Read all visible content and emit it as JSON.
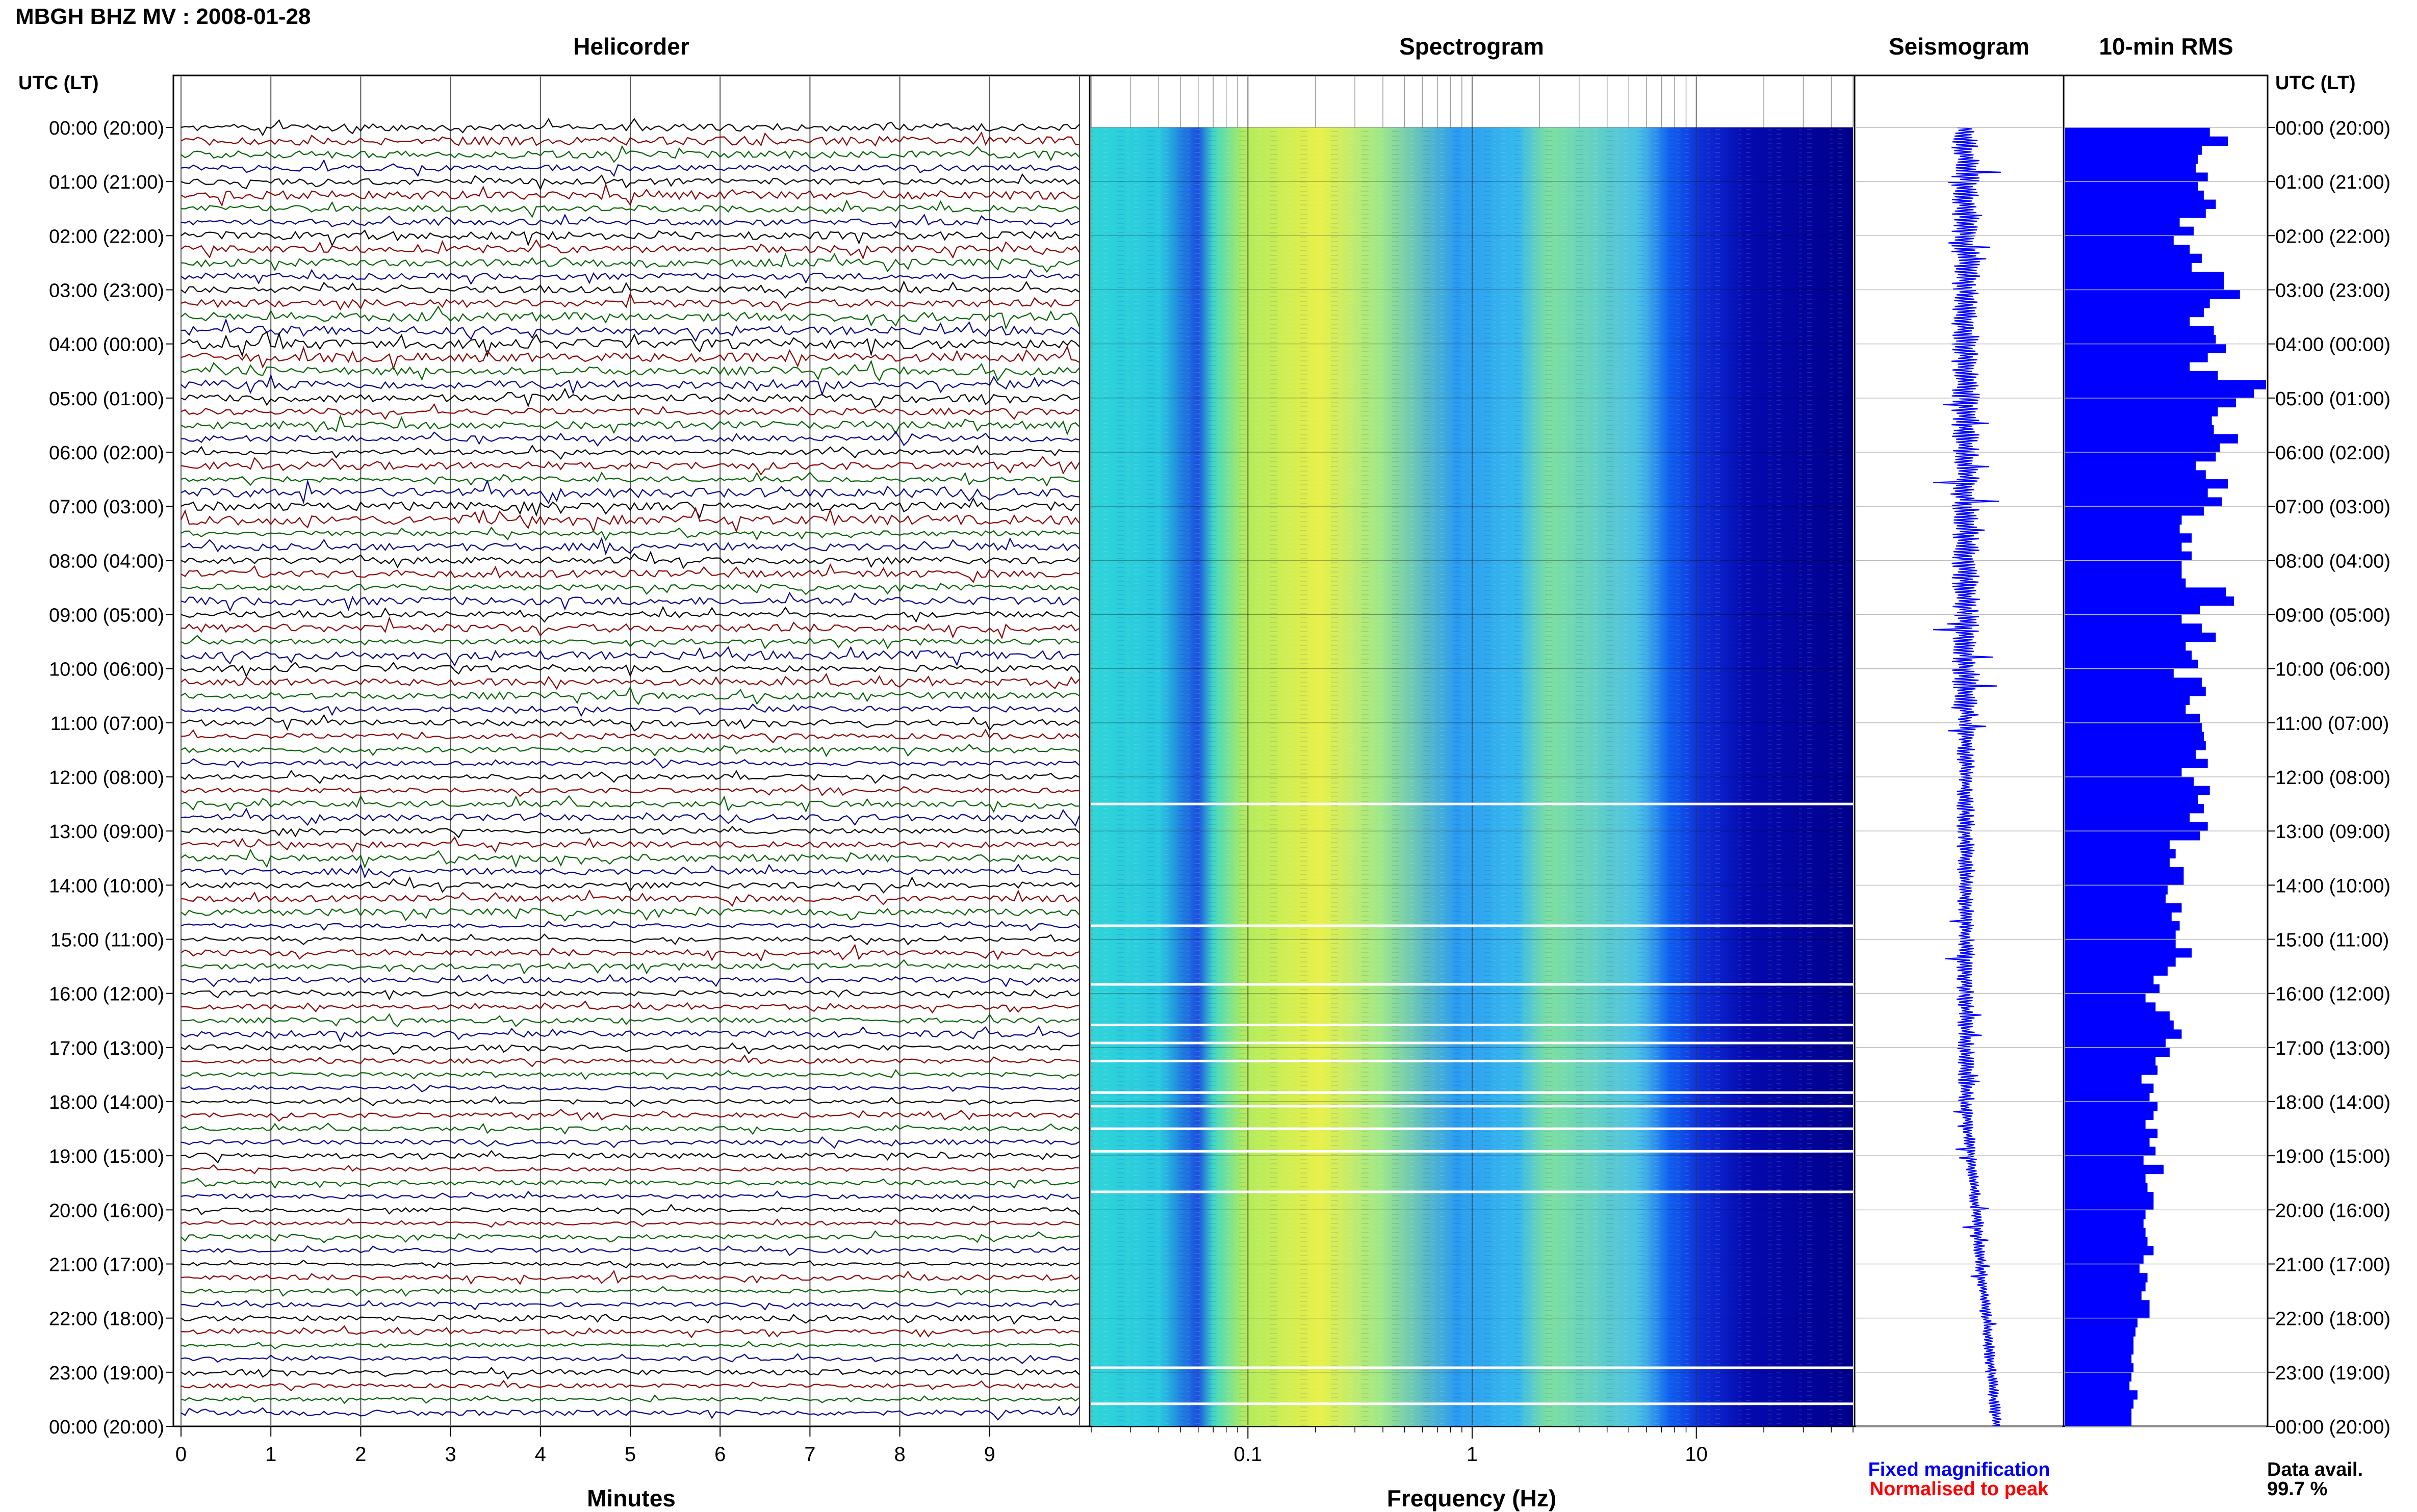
{
  "header": {
    "title": "MBGH BHZ MV : 2008-01-28",
    "panels": [
      "Helicorder",
      "Spectrogram",
      "Seismogram",
      "10-min RMS"
    ]
  },
  "axes": {
    "utc_lt_label": "UTC (LT)",
    "time_labels": [
      "00:00 (20:00)",
      "01:00 (21:00)",
      "02:00 (22:00)",
      "03:00 (23:00)",
      "04:00 (00:00)",
      "05:00 (01:00)",
      "06:00 (02:00)",
      "07:00 (03:00)",
      "08:00 (04:00)",
      "09:00 (05:00)",
      "10:00 (06:00)",
      "11:00 (07:00)",
      "12:00 (08:00)",
      "13:00 (09:00)",
      "14:00 (10:00)",
      "15:00 (11:00)",
      "16:00 (12:00)",
      "17:00 (13:00)",
      "18:00 (14:00)",
      "19:00 (15:00)",
      "20:00 (16:00)",
      "21:00 (17:00)",
      "22:00 (18:00)",
      "23:00 (19:00)",
      "00:00 (20:00)"
    ],
    "minutes_label": "Minutes",
    "minutes_ticks": [
      "0",
      "1",
      "2",
      "3",
      "4",
      "5",
      "6",
      "7",
      "8",
      "9"
    ],
    "frequency_label": "Frequency (Hz)",
    "frequency_ticks": [
      "0.1",
      "1",
      "10"
    ]
  },
  "legend": {
    "fixed": "Fixed magnification",
    "normalised": "Normalised to peak",
    "fixed_color": "#0000ff",
    "normalised_color": "#ff0000"
  },
  "availability": {
    "label": "Data avail.",
    "value": "99.7 %"
  },
  "colors": {
    "trace_cycle": [
      "#000000",
      "#8b0000",
      "#006400",
      "#00008b"
    ],
    "spectrogram_low": "#00008b",
    "spectrogram_high": "#ffff00",
    "rms_bar": "#0000ff",
    "seismogram": "#0000ff"
  },
  "chart_data": [
    {
      "type": "line",
      "title": "Helicorder",
      "xlabel": "Minutes",
      "xlim": [
        0,
        10
      ],
      "rows": 96,
      "row_minutes": 15
    },
    {
      "type": "heatmap",
      "title": "Spectrogram",
      "xlabel": "Frequency (Hz)",
      "x_scale": "log",
      "xlim": [
        0.02,
        50
      ]
    },
    {
      "type": "line",
      "title": "Seismogram"
    },
    {
      "type": "bar",
      "title": "10-min RMS",
      "values": [
        0.72,
        0.81,
        0.68,
        0.66,
        0.65,
        0.71,
        0.66,
        0.69,
        0.75,
        0.7,
        0.57,
        0.64,
        0.54,
        0.62,
        0.68,
        0.63,
        0.79,
        0.79,
        0.87,
        0.72,
        0.69,
        0.62,
        0.74,
        0.75,
        0.8,
        0.71,
        0.62,
        0.76,
        1.0,
        0.94,
        0.85,
        0.76,
        0.73,
        0.74,
        0.86,
        0.77,
        0.75,
        0.65,
        0.7,
        0.81,
        0.71,
        0.78,
        0.69,
        0.58,
        0.57,
        0.63,
        0.58,
        0.63,
        0.58,
        0.58,
        0.6,
        0.8,
        0.84,
        0.67,
        0.58,
        0.68,
        0.75,
        0.6,
        0.63,
        0.66,
        0.54,
        0.68,
        0.7,
        0.62,
        0.6,
        0.67,
        0.68,
        0.69,
        0.7,
        0.65,
        0.71,
        0.58,
        0.64,
        0.72,
        0.66,
        0.69,
        0.62,
        0.71,
        0.67,
        0.52,
        0.55,
        0.52,
        0.59,
        0.59,
        0.51,
        0.5,
        0.58,
        0.53,
        0.57,
        0.55,
        0.55,
        0.63,
        0.55,
        0.51,
        0.44,
        0.47,
        0.4,
        0.45,
        0.52,
        0.54,
        0.58,
        0.5,
        0.52,
        0.45,
        0.46,
        0.38,
        0.44,
        0.42,
        0.46,
        0.44,
        0.4,
        0.46,
        0.42,
        0.45,
        0.39,
        0.49,
        0.4,
        0.41,
        0.44,
        0.44,
        0.4,
        0.39,
        0.4,
        0.41,
        0.44,
        0.39,
        0.37,
        0.41,
        0.4,
        0.38,
        0.42,
        0.42,
        0.36,
        0.35,
        0.34,
        0.34,
        0.33,
        0.34,
        0.33,
        0.32,
        0.36,
        0.34,
        0.33,
        0.33
      ],
      "gaps_utc": [
        "12:30",
        "14:45",
        "15:50",
        "16:35",
        "16:55",
        "17:15",
        "17:50",
        "18:05",
        "18:30",
        "18:55",
        "19:40",
        "22:55",
        "23:35"
      ]
    }
  ]
}
